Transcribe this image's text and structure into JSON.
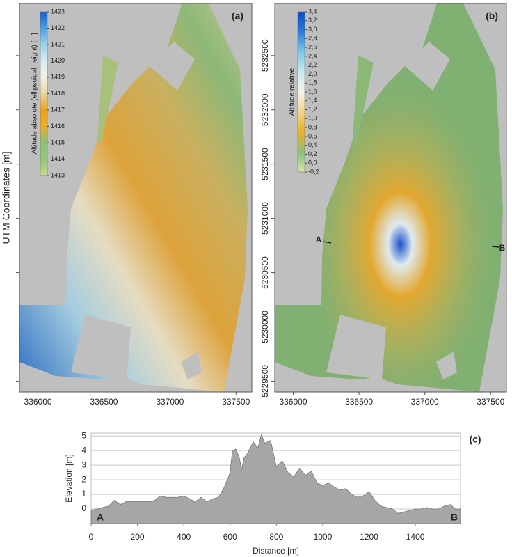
{
  "chart_data": [
    {
      "type": "map",
      "label": "(a)",
      "ylabel": "UTM Coordinates [m]",
      "xlim": [
        335860,
        337620
      ],
      "xticks": [
        336000,
        336500,
        337000,
        337500
      ],
      "colorbar": {
        "title": "Altitude absolute (ellipsoidal height) [m]",
        "lim": [
          1413,
          1423
        ],
        "ticks": [
          1413,
          1414,
          1415,
          1416,
          1417,
          1418,
          1419,
          1420,
          1421,
          1422,
          1423
        ],
        "colors": [
          "#c9d98f",
          "#93c47d",
          "#8cc07a",
          "#e8b030",
          "#e8a21e",
          "#e8d6a6",
          "#f4f0e6",
          "#d8ecf4",
          "#9ccfe8",
          "#4f9fdc",
          "#1a5ec8"
        ]
      }
    },
    {
      "type": "map",
      "label": "(b)",
      "xlim": [
        335860,
        337620
      ],
      "xticks": [
        336000,
        336500,
        337000,
        337500
      ],
      "ylim": [
        5229400,
        5232980
      ],
      "yticks": [
        5229500,
        5230000,
        5230500,
        5231000,
        5231500,
        5232000,
        5232500
      ],
      "annotations": [
        "A",
        "B"
      ],
      "colorbar": {
        "title": "Altitude relative",
        "lim": [
          -0.2,
          3.4
        ],
        "ticks": [
          {
            "value": -0.2,
            "label": "-0,2"
          },
          {
            "value": 0,
            "label": "0,0"
          },
          {
            "value": 0.2,
            "label": "0,2"
          },
          {
            "value": 0.4,
            "label": "0,4"
          },
          {
            "value": 0.6,
            "label": "0,6"
          },
          {
            "value": 0.8,
            "label": "0,8"
          },
          {
            "value": 1,
            "label": "1,0"
          },
          {
            "value": 1.2,
            "label": "1,2"
          },
          {
            "value": 1.4,
            "label": "1,4"
          },
          {
            "value": 1.6,
            "label": "1,6"
          },
          {
            "value": 1.8,
            "label": "1,8"
          },
          {
            "value": 2,
            "label": "2,0"
          },
          {
            "value": 2.2,
            "label": "2,2"
          },
          {
            "value": 2.4,
            "label": "2,4"
          },
          {
            "value": 2.6,
            "label": "2,6"
          },
          {
            "value": 2.8,
            "label": "2,8"
          },
          {
            "value": 3,
            "label": "3,0"
          },
          {
            "value": 3.2,
            "label": "3,2"
          },
          {
            "value": 3.4,
            "label": "3,4"
          }
        ],
        "colors": [
          "#d4e2a4",
          "#8cc07a",
          "#e8b02a",
          "#efd68a",
          "#f6f3ea",
          "#c8eaf0",
          "#7cc8e8",
          "#2a7cd8",
          "#0a4cc8"
        ]
      }
    },
    {
      "type": "area",
      "label": "(c)",
      "xlabel": "Distance [m]",
      "ylabel": "Elevation [m]",
      "annotations": [
        "A",
        "B"
      ],
      "color": "#a6a6a6",
      "grid": true,
      "xlim": [
        0,
        1595
      ],
      "xticks": [
        0,
        200,
        400,
        600,
        800,
        1000,
        1200,
        1400
      ],
      "ylim": [
        -1,
        5.2
      ],
      "yticks": [
        0,
        1,
        2,
        3,
        4,
        5
      ],
      "x": [
        0,
        25,
        50,
        75,
        100,
        125,
        150,
        175,
        200,
        225,
        250,
        275,
        300,
        325,
        350,
        375,
        400,
        425,
        450,
        475,
        500,
        525,
        550,
        575,
        600,
        610,
        625,
        640,
        650,
        660,
        675,
        700,
        720,
        735,
        750,
        775,
        790,
        800,
        825,
        850,
        875,
        900,
        925,
        950,
        975,
        1000,
        1025,
        1050,
        1075,
        1100,
        1125,
        1150,
        1175,
        1200,
        1225,
        1250,
        1275,
        1300,
        1325,
        1350,
        1375,
        1400,
        1425,
        1450,
        1475,
        1500,
        1525,
        1550,
        1575,
        1595
      ],
      "values": [
        -0.1,
        0,
        0.1,
        0.2,
        0.6,
        0.3,
        0.5,
        0.5,
        0.5,
        0.5,
        0.5,
        0.6,
        0.9,
        0.8,
        0.8,
        0.8,
        0.9,
        0.7,
        0.5,
        0.8,
        0.5,
        0.7,
        0.8,
        1.5,
        2.5,
        4.0,
        4.1,
        3.5,
        2.7,
        3.5,
        3.8,
        4.6,
        4.2,
        5.1,
        4.5,
        4.7,
        3.6,
        2.9,
        3.3,
        2.5,
        2.2,
        2.8,
        2.3,
        2.6,
        1.8,
        1.6,
        1.8,
        1.5,
        1.3,
        1.4,
        1.0,
        0.8,
        0.9,
        1.2,
        0.6,
        0.2,
        0.1,
        0.0,
        -0.3,
        -0.2,
        -0.1,
        0.0,
        0.0,
        0.1,
        0.0,
        0.0,
        0.2,
        0.3,
        0.0,
        0.0
      ]
    }
  ]
}
